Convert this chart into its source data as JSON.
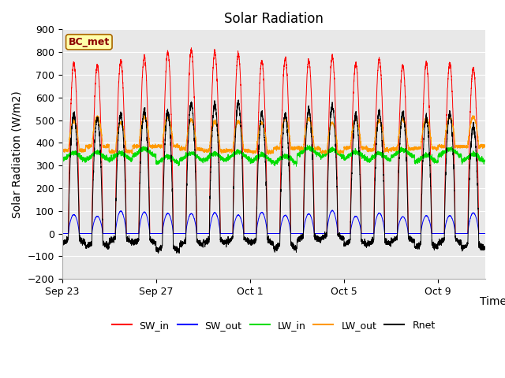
{
  "title": "Solar Radiation",
  "ylabel": "Solar Radiation (W/m2)",
  "xlabel": "Time",
  "ylim": [
    -200,
    900
  ],
  "yticks": [
    -200,
    -100,
    0,
    100,
    200,
    300,
    400,
    500,
    600,
    700,
    800,
    900
  ],
  "xtick_labels": [
    "Sep 23",
    "Sep 27",
    "Oct 1",
    "Oct 5",
    "Oct 9"
  ],
  "xtick_positions": [
    0,
    4,
    8,
    12,
    16
  ],
  "xlim": [
    0,
    18
  ],
  "label_text": "BC_met",
  "colors": {
    "SW_in": "#ff0000",
    "SW_out": "#0000ff",
    "LW_in": "#00dd00",
    "LW_out": "#ff9900",
    "Rnet": "#000000"
  },
  "background_color": "#e8e8e8",
  "grid_color": "#ffffff",
  "title_fontsize": 12,
  "axis_fontsize": 10,
  "tick_fontsize": 9,
  "n_days": 18,
  "points_per_day": 288
}
